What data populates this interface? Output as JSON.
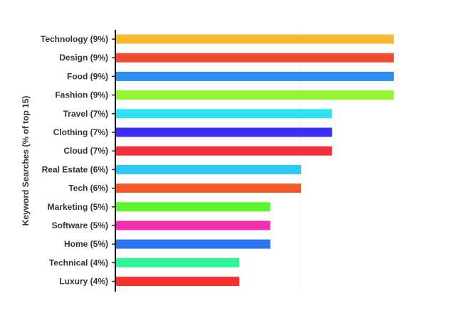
{
  "chart_data": {
    "type": "bar",
    "orientation": "horizontal",
    "title": "",
    "xlabel": "",
    "ylabel": "Keyword Searches (% of top 15)",
    "categories": [
      "Technology (9%)",
      "Design (9%)",
      "Food (9%)",
      "Fashion (9%)",
      "Travel (7%)",
      "Clothing (7%)",
      "Cloud (7%)",
      "Real Estate (6%)",
      "Tech (6%)",
      "Marketing (5%)",
      "Software (5%)",
      "Home (5%)",
      "Technical (4%)",
      "Luxury (4%)"
    ],
    "values": [
      9,
      9,
      9,
      9,
      7,
      7,
      7,
      6,
      6,
      5,
      5,
      5,
      4,
      4
    ],
    "colors": [
      "#f5b82e",
      "#f44b2f",
      "#2b8ff0",
      "#94f52e",
      "#2ee3f5",
      "#3b2ef5",
      "#f5303a",
      "#2ec8f5",
      "#f55a2e",
      "#5cf52e",
      "#f52eb0",
      "#2e75f0",
      "#2ef59a",
      "#f5302e"
    ],
    "xlim": [
      0,
      10
    ],
    "grid": true,
    "legend": "none"
  }
}
